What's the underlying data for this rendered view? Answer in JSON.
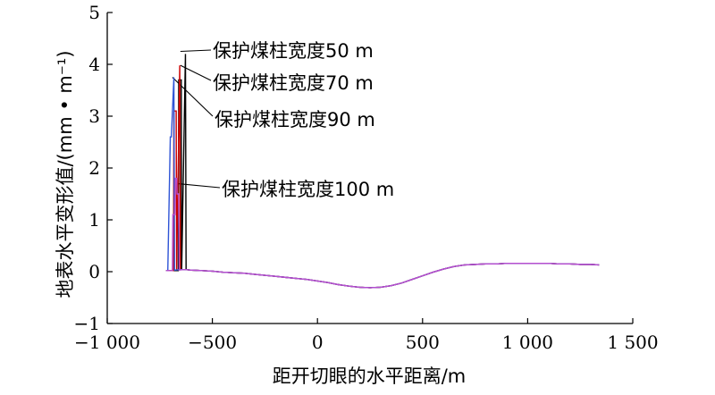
{
  "chart_data": {
    "type": "line",
    "xlabel": "距开切眼的水平距离/m",
    "ylabel": "地表水平变形值/(mm • m⁻¹)",
    "xlim": [
      -1000,
      1500
    ],
    "ylim": [
      -1,
      5
    ],
    "x_ticks": [
      -1000,
      -500,
      0,
      500,
      1000,
      1500
    ],
    "x_tick_labels": [
      "−1 000",
      "−500",
      "0",
      "500",
      "1 000",
      "1 500"
    ],
    "y_ticks": [
      -1,
      0,
      1,
      2,
      3,
      4,
      5
    ],
    "y_tick_labels": [
      "−1",
      "0",
      "1",
      "2",
      "3",
      "4",
      "5"
    ],
    "grid": false,
    "series": [
      {
        "name": "保护煤柱宽度50 m",
        "color": "#000000",
        "x": [
          -720,
          -700,
          -680,
          -662,
          -660,
          -648,
          -646,
          -628,
          -625,
          -600,
          -550,
          -500,
          -450,
          -400,
          -350,
          -300,
          -250,
          -200,
          -150,
          -100,
          -50,
          0,
          50,
          100,
          150,
          200,
          250,
          300,
          350,
          400,
          450,
          500,
          550,
          600,
          650,
          700,
          750,
          800,
          850,
          900,
          950,
          1000,
          1050,
          1100,
          1150,
          1200,
          1250,
          1300,
          1340
        ],
        "values": [
          0.02,
          0.02,
          0.02,
          0.02,
          3.7,
          3.7,
          0.03,
          4.2,
          0.04,
          0.03,
          0.02,
          0.01,
          -0.01,
          -0.02,
          -0.03,
          -0.05,
          -0.07,
          -0.09,
          -0.11,
          -0.13,
          -0.15,
          -0.18,
          -0.21,
          -0.25,
          -0.28,
          -0.3,
          -0.31,
          -0.3,
          -0.27,
          -0.22,
          -0.15,
          -0.08,
          -0.01,
          0.05,
          0.1,
          0.13,
          0.14,
          0.15,
          0.15,
          0.16,
          0.16,
          0.16,
          0.16,
          0.16,
          0.15,
          0.15,
          0.14,
          0.14,
          0.13
        ]
      },
      {
        "name": "保护煤柱宽度70 m",
        "color": "#cc0000",
        "x": [
          -720,
          -700,
          -685,
          -683,
          -672,
          -670,
          -655,
          -652,
          -625,
          -600,
          -550,
          -500,
          -450,
          -400,
          -350,
          -300,
          -250,
          -200,
          -150,
          -100,
          -50,
          0,
          50,
          100,
          150,
          200,
          250,
          300,
          350,
          400,
          450,
          500,
          550,
          600,
          650,
          700,
          750,
          800,
          850,
          900,
          950,
          1000,
          1050,
          1100,
          1150,
          1200,
          1250,
          1300,
          1340
        ],
        "values": [
          0.02,
          0.02,
          0.02,
          3.1,
          3.1,
          0.03,
          3.98,
          0.04,
          0.04,
          0.03,
          0.02,
          0.01,
          -0.01,
          -0.02,
          -0.03,
          -0.05,
          -0.07,
          -0.09,
          -0.11,
          -0.13,
          -0.15,
          -0.18,
          -0.21,
          -0.25,
          -0.28,
          -0.3,
          -0.31,
          -0.3,
          -0.27,
          -0.22,
          -0.15,
          -0.08,
          -0.01,
          0.05,
          0.1,
          0.13,
          0.14,
          0.15,
          0.15,
          0.16,
          0.16,
          0.16,
          0.16,
          0.16,
          0.15,
          0.15,
          0.14,
          0.14,
          0.13
        ]
      },
      {
        "name": "保护煤柱宽度90 m",
        "color": "#2e54d6",
        "x": [
          -720,
          -712,
          -700,
          -695,
          -683,
          -680,
          -655,
          -625,
          -600,
          -550,
          -500,
          -450,
          -400,
          -350,
          -300,
          -250,
          -200,
          -150,
          -100,
          -50,
          0,
          50,
          100,
          150,
          200,
          250,
          300,
          350,
          400,
          450,
          500,
          550,
          600,
          650,
          700,
          750,
          800,
          850,
          900,
          950,
          1000,
          1050,
          1100,
          1150,
          1200,
          1250,
          1300,
          1340
        ],
        "values": [
          0.02,
          0.02,
          2.6,
          2.6,
          3.75,
          0.03,
          0.04,
          0.04,
          0.03,
          0.02,
          0.01,
          -0.01,
          -0.02,
          -0.03,
          -0.05,
          -0.07,
          -0.09,
          -0.11,
          -0.13,
          -0.15,
          -0.18,
          -0.21,
          -0.25,
          -0.28,
          -0.3,
          -0.31,
          -0.3,
          -0.27,
          -0.22,
          -0.15,
          -0.08,
          -0.01,
          0.05,
          0.1,
          0.13,
          0.14,
          0.15,
          0.15,
          0.16,
          0.16,
          0.16,
          0.16,
          0.16,
          0.15,
          0.15,
          0.14,
          0.14,
          0.13
        ]
      },
      {
        "name": "保护煤柱宽度100 m",
        "color": "#b84fd1",
        "x": [
          -720,
          -700,
          -690,
          -688,
          -678,
          -676,
          -670,
          -668,
          -660,
          -658,
          -640,
          -625,
          -600,
          -550,
          -500,
          -450,
          -400,
          -350,
          -300,
          -250,
          -200,
          -150,
          -100,
          -50,
          0,
          50,
          100,
          150,
          200,
          250,
          300,
          350,
          400,
          450,
          500,
          550,
          600,
          650,
          700,
          750,
          800,
          850,
          900,
          950,
          1000,
          1050,
          1100,
          1150,
          1200,
          1250,
          1300,
          1340
        ],
        "values": [
          0.02,
          0.02,
          0.02,
          1.1,
          1.1,
          1.8,
          1.8,
          1.5,
          1.5,
          0.03,
          0.04,
          0.04,
          0.03,
          0.02,
          0.01,
          -0.01,
          -0.02,
          -0.03,
          -0.05,
          -0.07,
          -0.09,
          -0.11,
          -0.13,
          -0.15,
          -0.18,
          -0.21,
          -0.25,
          -0.28,
          -0.3,
          -0.31,
          -0.3,
          -0.27,
          -0.22,
          -0.15,
          -0.08,
          -0.01,
          0.05,
          0.1,
          0.13,
          0.14,
          0.15,
          0.15,
          0.16,
          0.16,
          0.16,
          0.16,
          0.16,
          0.15,
          0.15,
          0.14,
          0.14,
          0.13
        ]
      }
    ],
    "annotations": [
      {
        "text": "保护煤柱宽度50 m",
        "x": -652,
        "y": 4.25
      },
      {
        "text": "保护煤柱宽度70 m",
        "x": -652,
        "y": 3.98
      },
      {
        "text": "保护煤柱宽度90 m",
        "x": -690,
        "y": 3.75
      },
      {
        "text": "保护煤柱宽度100 m",
        "x": -668,
        "y": 1.7
      }
    ]
  }
}
